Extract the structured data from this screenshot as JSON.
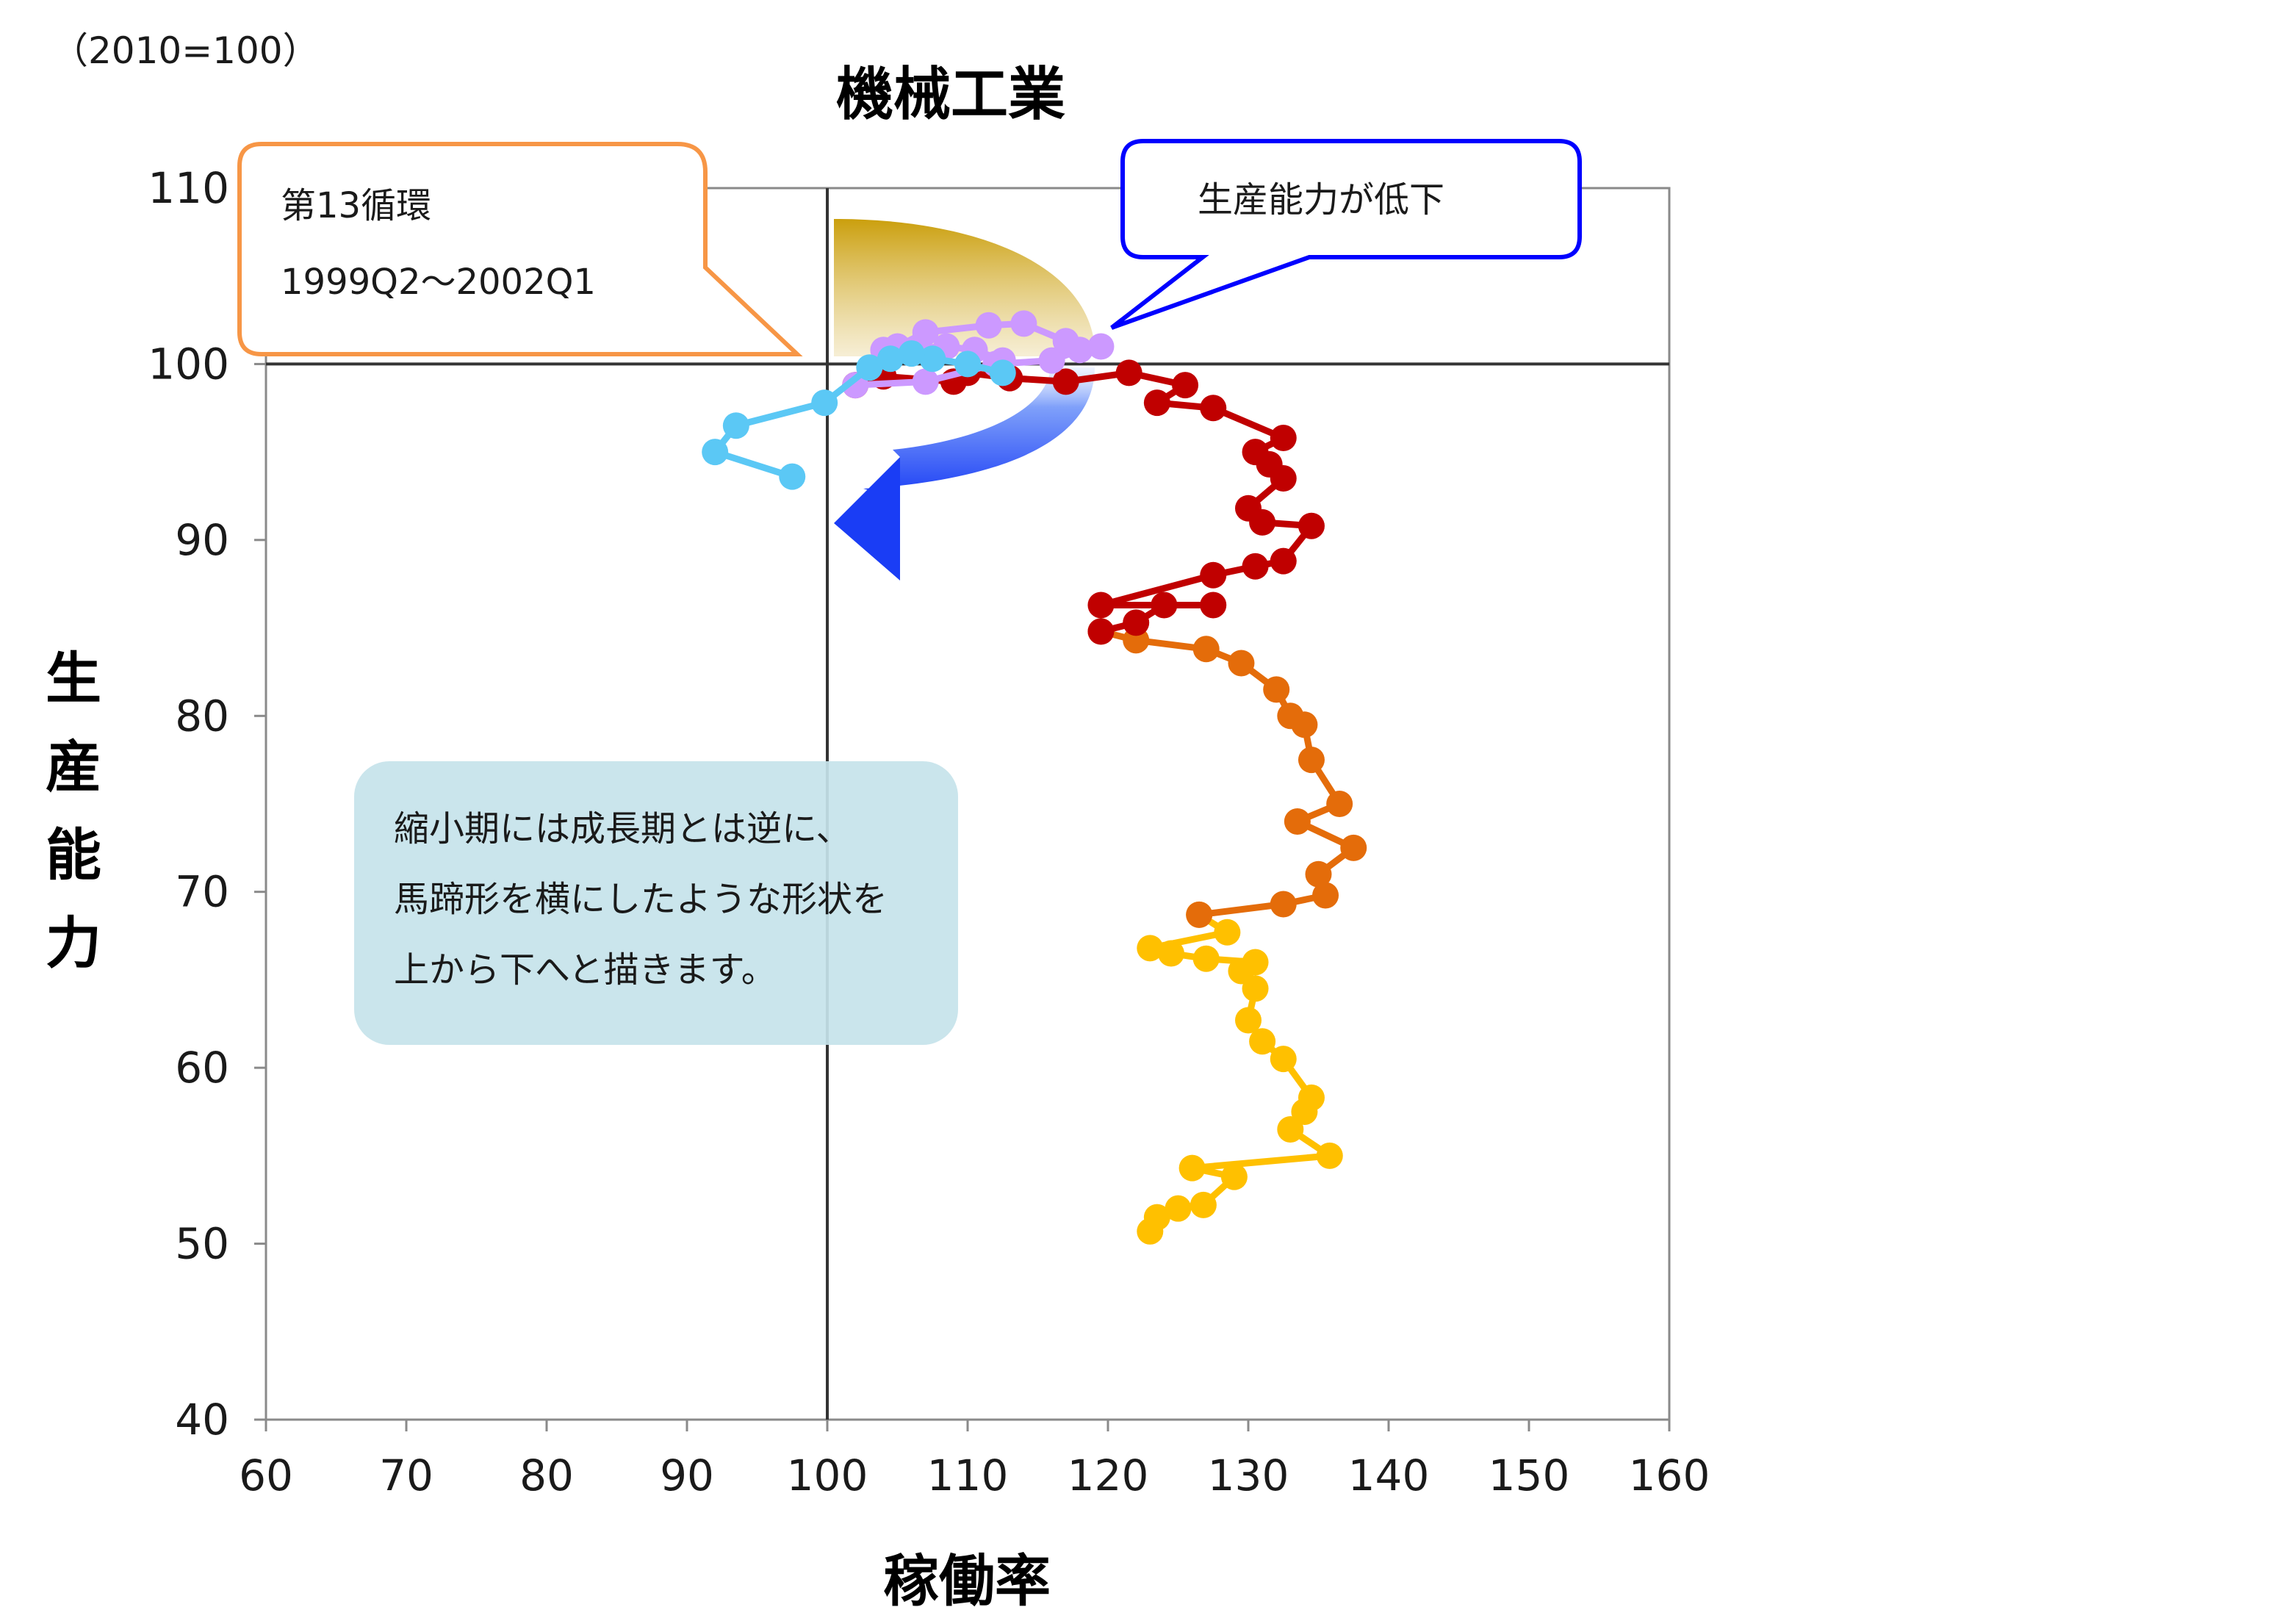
{
  "chart_data": {
    "type": "scatter",
    "title": "機械工業",
    "unit_note": "（2010=100）",
    "xlabel": "稼働率",
    "ylabel": "生産能力",
    "xlim": [
      60,
      160
    ],
    "ylim": [
      40,
      110
    ],
    "xticks": [
      "60",
      "70",
      "80",
      "90",
      "100",
      "110",
      "120",
      "130",
      "140",
      "150",
      "160"
    ],
    "yticks": [
      "40",
      "50",
      "60",
      "70",
      "80",
      "90",
      "100",
      "110"
    ],
    "grid": false,
    "reference_lines": {
      "x": 100,
      "y": 100
    },
    "colors": {
      "yellow": "#FFC000",
      "orange": "#E46C0A",
      "darkred": "#C00000",
      "violet": "#CC99FF",
      "skyblue": "#5BC8F5",
      "callout_orange": "#F79646",
      "callout_blue": "#0000FF",
      "note_bg": "#C5E3EA"
    },
    "series": [
      {
        "color": "yellow",
        "points": [
          [
            123.0,
            50.7
          ],
          [
            123.5,
            51.5
          ],
          [
            125.0,
            52.0
          ],
          [
            126.8,
            52.2
          ],
          [
            129.0,
            53.8
          ],
          [
            126.0,
            54.3
          ],
          [
            135.8,
            55.0
          ],
          [
            133.0,
            56.5
          ],
          [
            134.0,
            57.5
          ],
          [
            134.5,
            58.3
          ],
          [
            132.5,
            60.5
          ],
          [
            131.0,
            61.5
          ],
          [
            130.0,
            62.7
          ],
          [
            130.5,
            64.5
          ],
          [
            129.5,
            65.5
          ],
          [
            130.5,
            66.0
          ],
          [
            127.0,
            66.2
          ],
          [
            124.5,
            66.5
          ],
          [
            123.0,
            66.8
          ],
          [
            128.5,
            67.7
          ],
          [
            126.5,
            68.7
          ]
        ]
      },
      {
        "color": "orange",
        "points": [
          [
            126.5,
            68.7
          ],
          [
            132.5,
            69.3
          ],
          [
            135.5,
            69.8
          ],
          [
            135.0,
            71.0
          ],
          [
            137.5,
            72.5
          ],
          [
            133.5,
            74.0
          ],
          [
            136.5,
            75.0
          ],
          [
            134.5,
            77.5
          ],
          [
            134.0,
            79.5
          ],
          [
            133.0,
            80.0
          ],
          [
            132.0,
            81.5
          ],
          [
            129.5,
            83.0
          ],
          [
            127.0,
            83.8
          ],
          [
            122.0,
            84.3
          ],
          [
            119.5,
            84.8
          ]
        ]
      },
      {
        "color": "darkred",
        "points": [
          [
            119.5,
            84.8
          ],
          [
            122.0,
            85.3
          ],
          [
            124.0,
            86.3
          ],
          [
            127.5,
            86.3
          ],
          [
            119.5,
            86.3
          ],
          [
            127.5,
            88.0
          ],
          [
            130.5,
            88.5
          ],
          [
            132.5,
            88.8
          ],
          [
            134.5,
            90.8
          ],
          [
            131.0,
            91.0
          ],
          [
            130.0,
            91.8
          ],
          [
            132.5,
            93.5
          ],
          [
            131.5,
            94.3
          ],
          [
            130.5,
            95.0
          ],
          [
            132.5,
            95.8
          ],
          [
            127.5,
            97.5
          ],
          [
            123.5,
            97.8
          ],
          [
            125.5,
            98.8
          ],
          [
            121.5,
            99.5
          ],
          [
            117.0,
            99.0
          ],
          [
            113.0,
            99.2
          ],
          [
            110.0,
            99.5
          ],
          [
            109.0,
            99.0
          ],
          [
            104.0,
            99.3
          ],
          [
            102.0,
            98.8
          ]
        ]
      },
      {
        "color": "violet",
        "points": [
          [
            102.0,
            98.8
          ],
          [
            107.0,
            99.0
          ],
          [
            112.0,
            100.0
          ],
          [
            116.0,
            100.2
          ],
          [
            118.0,
            100.8
          ],
          [
            119.5,
            101.0
          ],
          [
            117.0,
            101.3
          ],
          [
            114.0,
            102.3
          ],
          [
            111.5,
            102.2
          ],
          [
            107.0,
            101.8
          ],
          [
            105.0,
            101.0
          ],
          [
            104.0,
            100.8
          ],
          [
            108.5,
            101.0
          ],
          [
            110.5,
            100.8
          ],
          [
            112.5,
            100.2
          ]
        ]
      },
      {
        "color": "skyblue",
        "points": [
          [
            112.5,
            99.5
          ],
          [
            110.0,
            100.0
          ],
          [
            107.5,
            100.3
          ],
          [
            106.0,
            100.6
          ],
          [
            104.5,
            100.3
          ],
          [
            103.0,
            99.8
          ],
          [
            99.8,
            97.8
          ],
          [
            93.5,
            96.5
          ],
          [
            92.0,
            95.0
          ],
          [
            97.5,
            93.6
          ]
        ]
      }
    ],
    "annotations": {
      "cycle_label_line1": "第13循環",
      "cycle_label_line2": "1999Q2〜2002Q1",
      "capacity_note": "生産能力が低下",
      "description_lines": [
        "縮小期には成長期とは逆に、",
        "馬蹄形を横にしたような形状を",
        "上から下へと描きます。"
      ]
    }
  }
}
